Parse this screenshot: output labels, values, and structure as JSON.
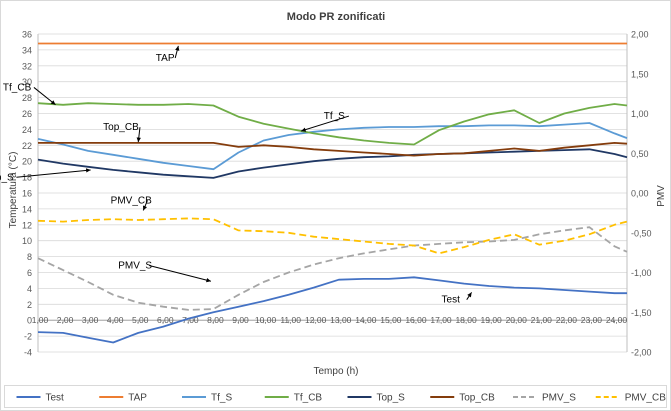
{
  "chart_data": {
    "type": "line",
    "title": "Modo PR zonificati",
    "xlabel": "Tempo (h)",
    "ylabel": "Temperatura (°C)",
    "ylabel2": "PMV",
    "ylim": [
      -4,
      36
    ],
    "y2lim": [
      -2,
      2
    ],
    "xlim": [
      1,
      24.5
    ],
    "y_ticks": [
      -4,
      -2,
      0,
      2,
      4,
      6,
      8,
      10,
      12,
      14,
      16,
      18,
      20,
      22,
      24,
      26,
      28,
      30,
      32,
      34,
      36
    ],
    "y_tick_labels": [
      "-4",
      "-2",
      "0",
      "2",
      "4",
      "6",
      "8",
      "10",
      "12",
      "14",
      "16",
      "18",
      "20",
      "22",
      "24",
      "26",
      "28",
      "30",
      "32",
      "34",
      "36"
    ],
    "y2_ticks": [
      -2,
      -1.5,
      -1,
      -0.5,
      0,
      0.5,
      1,
      1.5,
      2
    ],
    "y2_tick_labels": [
      "-2,00",
      "-1,50",
      "-1,00",
      "-0,50",
      "0,00",
      "0,50",
      "1,00",
      "1,50",
      "2,00"
    ],
    "x_ticks": [
      1,
      2,
      3,
      4,
      5,
      6,
      7,
      8,
      9,
      10,
      11,
      12,
      13,
      14,
      15,
      16,
      17,
      18,
      19,
      20,
      21,
      22,
      23,
      24
    ],
    "x_tick_labels": [
      "1,00",
      "2,00",
      "3,00",
      "4,00",
      "5,00",
      "6,00",
      "7,00",
      "8,00",
      "9,00",
      "10,00",
      "11,00",
      "12,00",
      "13,00",
      "14,00",
      "15,00",
      "16,00",
      "17,00",
      "18,00",
      "19,00",
      "20,00",
      "21,00",
      "22,00",
      "23,00",
      "24,00"
    ],
    "series": [
      {
        "name": "Test",
        "axis": "left",
        "color": "#4472c4",
        "dash": "solid",
        "x": [
          1,
          2,
          3,
          4,
          5,
          6,
          7,
          8,
          9,
          10,
          11,
          12,
          13,
          14,
          15,
          16,
          17,
          18,
          19,
          20,
          21,
          22,
          23,
          24,
          24.5
        ],
        "y": [
          -1.5,
          -1.6,
          -2.2,
          -2.8,
          -1.6,
          -0.8,
          0.2,
          1.0,
          1.7,
          2.4,
          3.2,
          4.1,
          5.1,
          5.2,
          5.2,
          5.4,
          5.0,
          4.6,
          4.3,
          4.1,
          4.0,
          3.8,
          3.6,
          3.4,
          3.4
        ]
      },
      {
        "name": "TAP",
        "axis": "left",
        "color": "#ed7d31",
        "dash": "solid",
        "x": [
          1,
          24.5
        ],
        "y": [
          34.8,
          34.8
        ]
      },
      {
        "name": "Tf_S",
        "axis": "left",
        "color": "#5b9bd5",
        "dash": "solid",
        "x": [
          1,
          2,
          3,
          4,
          5,
          6,
          7,
          8,
          9,
          10,
          11,
          12,
          13,
          14,
          15,
          16,
          17,
          18,
          19,
          20,
          21,
          22,
          23,
          24,
          24.5
        ],
        "y": [
          22.8,
          22.1,
          21.3,
          20.8,
          20.3,
          19.8,
          19.4,
          19.0,
          21.1,
          22.6,
          23.3,
          23.7,
          24.0,
          24.2,
          24.3,
          24.3,
          24.4,
          24.4,
          24.5,
          24.5,
          24.4,
          24.6,
          24.8,
          23.5,
          22.9
        ]
      },
      {
        "name": "Tf_CB",
        "axis": "left",
        "color": "#70ad47",
        "dash": "solid",
        "x": [
          1,
          2,
          3,
          4,
          5,
          6,
          7,
          8,
          9,
          10,
          11,
          12,
          13,
          14,
          15,
          16,
          17,
          18,
          19,
          20,
          21,
          22,
          23,
          24,
          24.5
        ],
        "y": [
          27.3,
          27.1,
          27.3,
          27.2,
          27.1,
          27.1,
          27.2,
          27.0,
          25.6,
          24.7,
          24.1,
          23.5,
          23.0,
          22.6,
          22.3,
          22.1,
          23.9,
          25.0,
          25.9,
          26.4,
          24.8,
          26.0,
          26.7,
          27.2,
          27.0
        ]
      },
      {
        "name": "Top_S",
        "axis": "left",
        "color": "#203864",
        "dash": "solid",
        "x": [
          1,
          2,
          3,
          4,
          5,
          6,
          7,
          8,
          9,
          10,
          11,
          12,
          13,
          14,
          15,
          16,
          17,
          18,
          19,
          20,
          21,
          22,
          23,
          24,
          24.5
        ],
        "y": [
          20.2,
          19.7,
          19.3,
          18.9,
          18.6,
          18.3,
          18.1,
          17.9,
          18.7,
          19.2,
          19.6,
          20.0,
          20.3,
          20.5,
          20.6,
          20.8,
          20.9,
          21.0,
          21.1,
          21.2,
          21.3,
          21.4,
          21.5,
          20.9,
          20.5
        ]
      },
      {
        "name": "Top_CB",
        "axis": "left",
        "color": "#843c0c",
        "dash": "solid",
        "x": [
          1,
          2,
          3,
          4,
          5,
          6,
          7,
          8,
          9,
          10,
          11,
          12,
          13,
          14,
          15,
          16,
          17,
          18,
          19,
          20,
          21,
          22,
          23,
          24,
          24.5
        ],
        "y": [
          22.3,
          22.3,
          22.3,
          22.3,
          22.3,
          22.3,
          22.3,
          22.3,
          21.8,
          22.0,
          21.8,
          21.5,
          21.3,
          21.1,
          20.9,
          20.7,
          20.9,
          21.0,
          21.3,
          21.6,
          21.3,
          21.7,
          22.0,
          22.3,
          22.2
        ]
      },
      {
        "name": "PMV_S",
        "axis": "right",
        "color": "#a5a5a5",
        "dash": "dash",
        "x": [
          1,
          2,
          3,
          4,
          5,
          6,
          7,
          8,
          9,
          10,
          11,
          12,
          13,
          14,
          15,
          16,
          17,
          18,
          19,
          20,
          21,
          22,
          23,
          24,
          24.5
        ],
        "y": [
          -0.82,
          -0.97,
          -1.12,
          -1.28,
          -1.38,
          -1.43,
          -1.47,
          -1.46,
          -1.28,
          -1.12,
          -1.0,
          -0.9,
          -0.82,
          -0.76,
          -0.71,
          -0.66,
          -0.64,
          -0.62,
          -0.61,
          -0.59,
          -0.52,
          -0.47,
          -0.43,
          -0.67,
          -0.74
        ]
      },
      {
        "name": "PMV_CB",
        "axis": "right",
        "color": "#ffc000",
        "dash": "dash",
        "x": [
          1,
          2,
          3,
          4,
          5,
          6,
          7,
          8,
          9,
          10,
          11,
          12,
          13,
          14,
          15,
          16,
          17,
          18,
          19,
          20,
          21,
          22,
          23,
          24,
          24.5
        ],
        "y": [
          -0.35,
          -0.36,
          -0.34,
          -0.33,
          -0.34,
          -0.33,
          -0.32,
          -0.33,
          -0.47,
          -0.48,
          -0.5,
          -0.55,
          -0.58,
          -0.61,
          -0.64,
          -0.66,
          -0.76,
          -0.68,
          -0.59,
          -0.52,
          -0.65,
          -0.6,
          -0.52,
          -0.4,
          -0.36
        ]
      }
    ],
    "annotations": [
      {
        "text": "TAP",
        "x": 5.7,
        "y": 32.6,
        "ax": 6.6,
        "ay": 34.5
      },
      {
        "text": "Tf_CB",
        "x": -0.4,
        "y": 28.9,
        "ax": 1.7,
        "ay": 27.1
      },
      {
        "text": "Tf_S",
        "x": 12.4,
        "y": 25.3,
        "ax": 11.5,
        "ay": 23.8
      },
      {
        "text": "Top_CB",
        "x": 3.6,
        "y": 23.9,
        "ax": 5.0,
        "ay": 22.4
      },
      {
        "text": "Top_S",
        "x": -1.1,
        "y": 17.6,
        "ax": 3.1,
        "ay": 18.9
      },
      {
        "text": "PMV_CB",
        "x": 3.9,
        "y": 14.7,
        "ax": 5.2,
        "ay": 13.8
      },
      {
        "text": "PMV_S",
        "x": 4.2,
        "y": 6.5,
        "ax": 7.9,
        "ay": 4.9
      },
      {
        "text": "Test",
        "x": 17.1,
        "y": 2.2,
        "ax": 18.3,
        "ay": 3.5
      }
    ]
  }
}
